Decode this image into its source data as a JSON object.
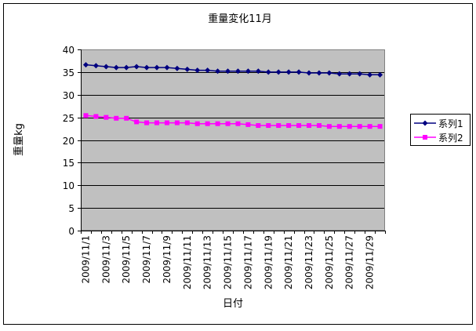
{
  "chart_data": {
    "type": "line",
    "title": "重量変化11月",
    "xlabel": "日付",
    "ylabel": "重量kg",
    "ylim": [
      0,
      40
    ],
    "ytick_step": 5,
    "grid": true,
    "legend_position": "right",
    "plot_background": "#c0c0c0",
    "x": [
      "2009/11/1",
      "2009/11/2",
      "2009/11/3",
      "2009/11/4",
      "2009/11/5",
      "2009/11/6",
      "2009/11/7",
      "2009/11/8",
      "2009/11/9",
      "2009/11/10",
      "2009/11/11",
      "2009/11/12",
      "2009/11/13",
      "2009/11/14",
      "2009/11/15",
      "2009/11/16",
      "2009/11/17",
      "2009/11/18",
      "2009/11/19",
      "2009/11/20",
      "2009/11/21",
      "2009/11/22",
      "2009/11/23",
      "2009/11/24",
      "2009/11/25",
      "2009/11/26",
      "2009/11/27",
      "2009/11/28",
      "2009/11/29",
      "2009/11/30"
    ],
    "x_tick_labels": [
      "2009/11/1",
      "2009/11/3",
      "2009/11/5",
      "2009/11/7",
      "2009/11/9",
      "2009/11/11",
      "2009/11/13",
      "2009/11/15",
      "2009/11/17",
      "2009/11/19",
      "2009/11/21",
      "2009/11/23",
      "2009/11/25",
      "2009/11/27",
      "2009/11/29"
    ],
    "series": [
      {
        "name": "系列1",
        "color": "#000080",
        "marker": "diamond",
        "values": [
          36.6,
          36.4,
          36.2,
          36.0,
          36.0,
          36.2,
          36.0,
          36.0,
          36.0,
          35.8,
          35.6,
          35.4,
          35.4,
          35.2,
          35.2,
          35.2,
          35.2,
          35.2,
          35.0,
          35.0,
          35.0,
          35.0,
          34.8,
          34.8,
          34.8,
          34.6,
          34.6,
          34.6,
          34.4,
          34.4
        ]
      },
      {
        "name": "系列2",
        "color": "#ff00ff",
        "marker": "square",
        "values": [
          25.4,
          25.2,
          25.0,
          24.8,
          24.8,
          24.0,
          23.8,
          23.8,
          23.8,
          23.8,
          23.8,
          23.6,
          23.6,
          23.6,
          23.6,
          23.6,
          23.4,
          23.2,
          23.2,
          23.2,
          23.2,
          23.2,
          23.2,
          23.2,
          23.0,
          23.0,
          23.0,
          23.0,
          23.0,
          23.0
        ]
      }
    ]
  }
}
